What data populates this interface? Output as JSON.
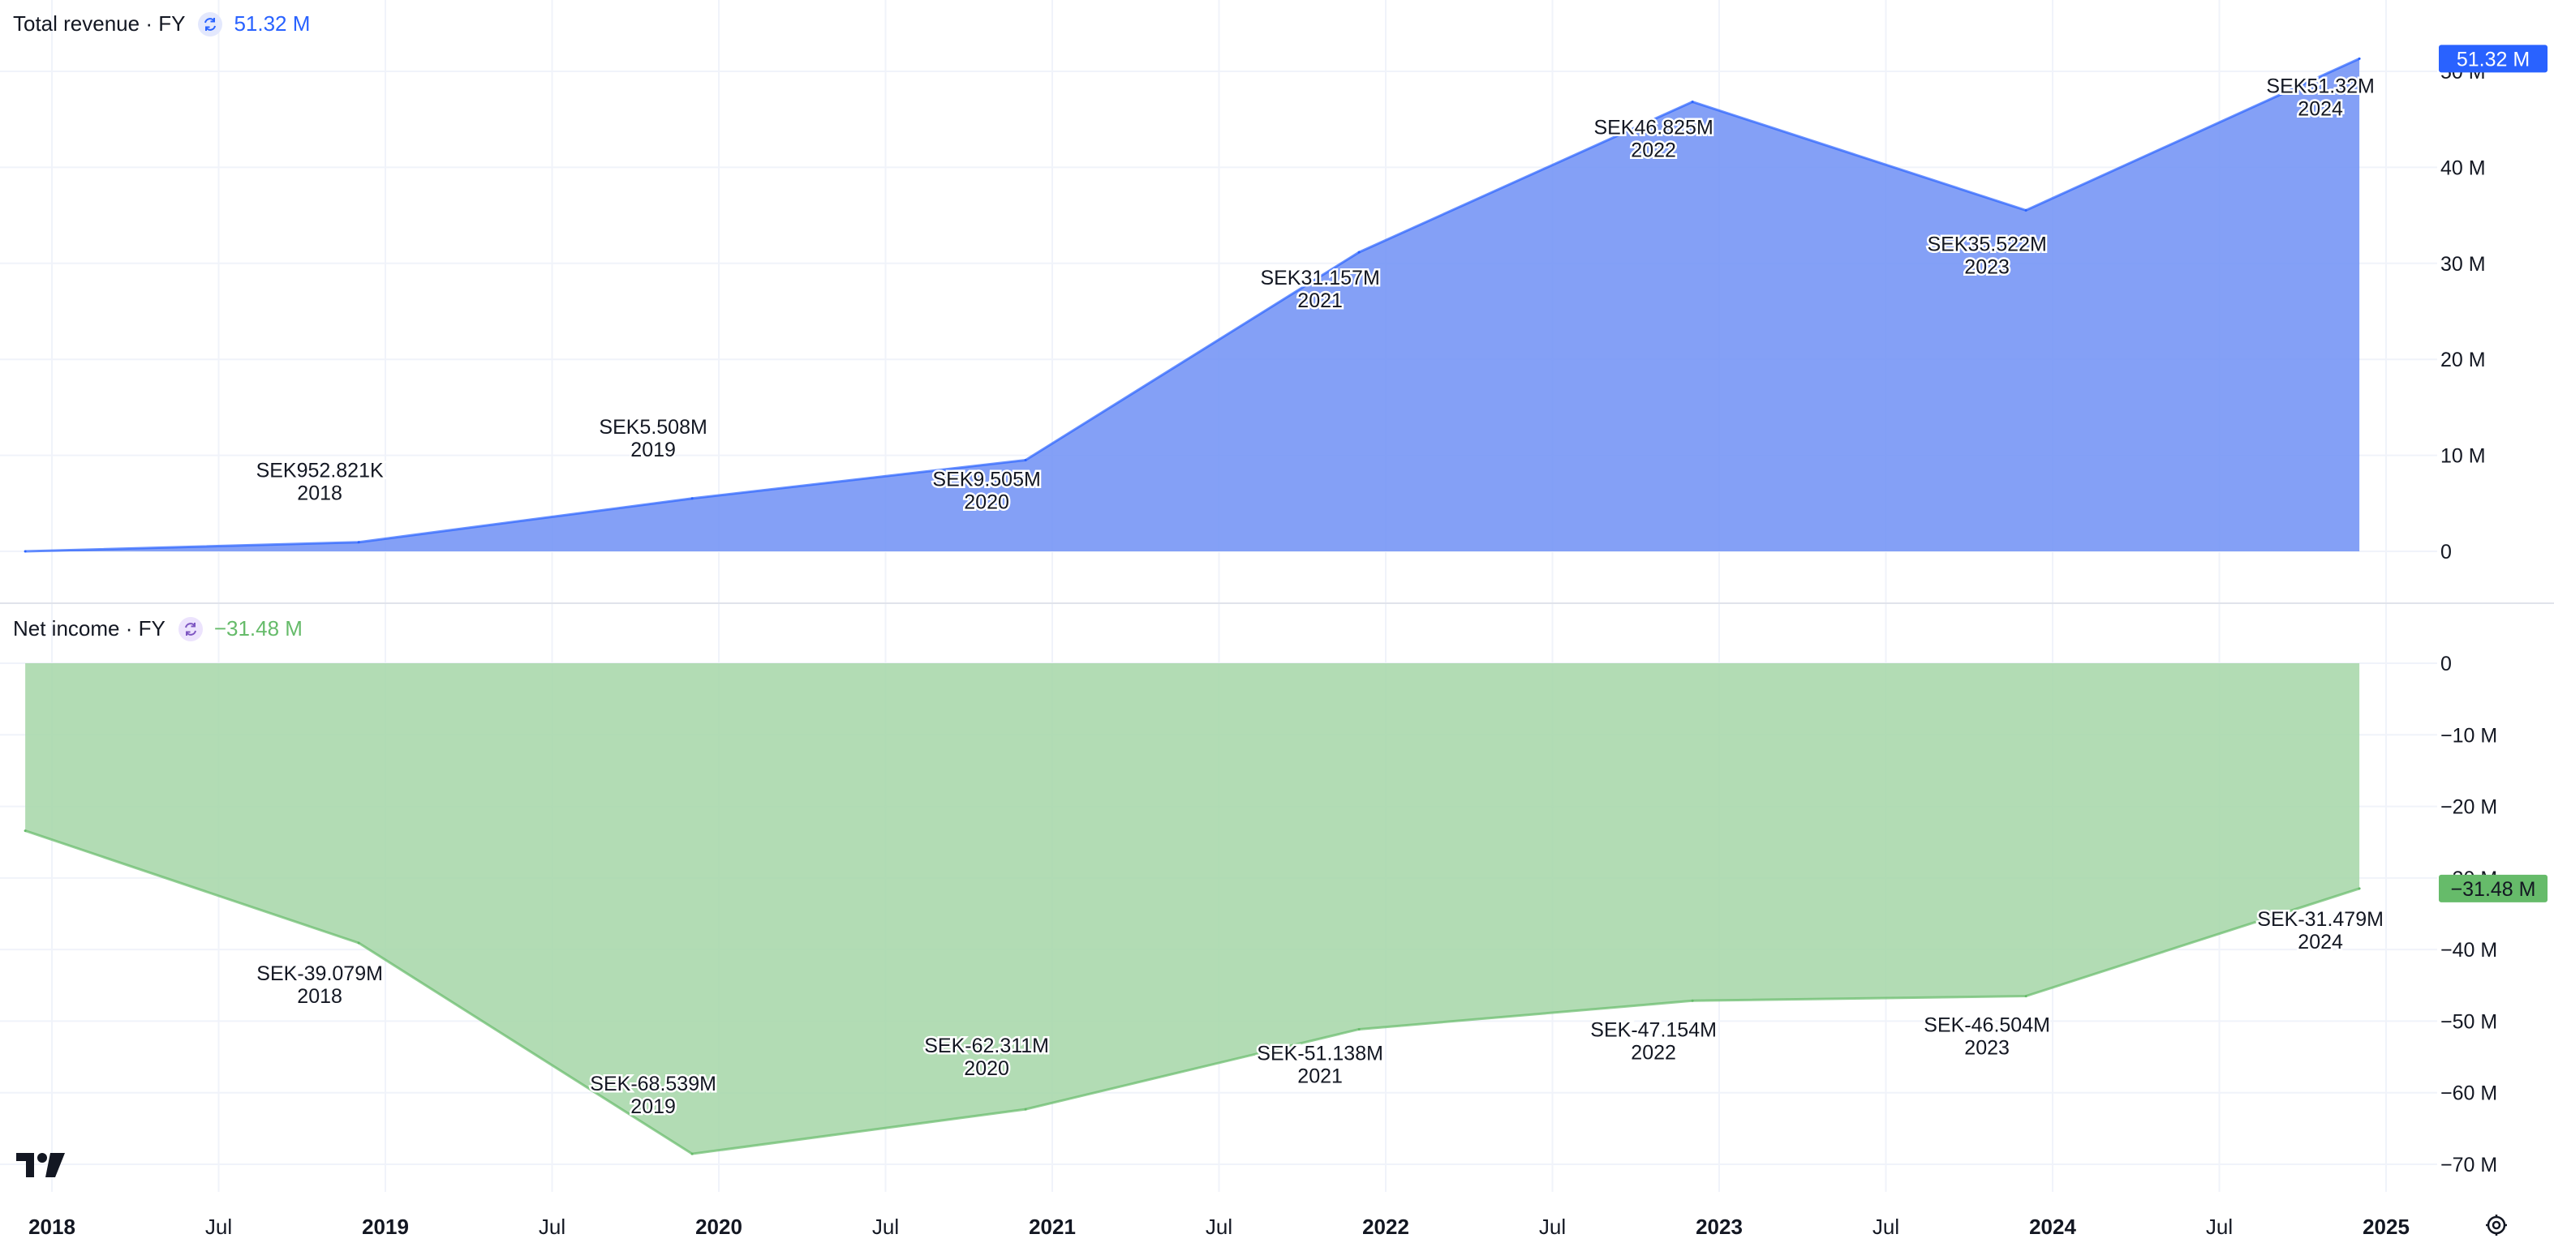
{
  "panes": [
    {
      "title": "Total revenue · FY",
      "current_value": "51.32 M",
      "color": "#2962ff",
      "fill": "#6f8ff5",
      "badge_color": "#2962ff"
    },
    {
      "title": "Net income · FY",
      "current_value": "−31.48 M",
      "color": "#66bb6a",
      "fill": "#a5d6a7",
      "badge_color": "#66bb6a"
    }
  ],
  "x_axis": {
    "ticks": [
      {
        "label": "2018",
        "t": 2018.0,
        "bold": true
      },
      {
        "label": "Jul",
        "t": 2018.5,
        "bold": false
      },
      {
        "label": "2019",
        "t": 2019.0,
        "bold": true
      },
      {
        "label": "Jul",
        "t": 2019.5,
        "bold": false
      },
      {
        "label": "2020",
        "t": 2020.0,
        "bold": true
      },
      {
        "label": "Jul",
        "t": 2020.5,
        "bold": false
      },
      {
        "label": "2021",
        "t": 2021.0,
        "bold": true
      },
      {
        "label": "Jul",
        "t": 2021.5,
        "bold": false
      },
      {
        "label": "2022",
        "t": 2022.0,
        "bold": true
      },
      {
        "label": "Jul",
        "t": 2022.5,
        "bold": false
      },
      {
        "label": "2023",
        "t": 2023.0,
        "bold": true
      },
      {
        "label": "Jul",
        "t": 2023.5,
        "bold": false
      },
      {
        "label": "2024",
        "t": 2024.0,
        "bold": true
      },
      {
        "label": "Jul",
        "t": 2024.5,
        "bold": false
      },
      {
        "label": "2025",
        "t": 2025.0,
        "bold": true
      }
    ]
  },
  "chart_data": [
    {
      "type": "area",
      "title": "Total revenue · FY",
      "xlabel": "",
      "ylabel": "",
      "ylim": [
        0,
        50
      ],
      "y_ticks": [
        {
          "v": 0,
          "label": "0"
        },
        {
          "v": 10,
          "label": "10 M"
        },
        {
          "v": 20,
          "label": "20 M"
        },
        {
          "v": 30,
          "label": "30 M"
        },
        {
          "v": 40,
          "label": "40 M"
        },
        {
          "v": 50,
          "label": "50 M"
        }
      ],
      "grid": true,
      "series": [
        {
          "points": [
            {
              "t": 2017.92,
              "y": 0.0
            },
            {
              "t": 2018.92,
              "y": 0.952821,
              "label": "SEK952.821K",
              "year": "2018"
            },
            {
              "t": 2019.92,
              "y": 5.508,
              "label": "SEK5.508M",
              "year": "2019"
            },
            {
              "t": 2020.92,
              "y": 9.505,
              "label": "SEK9.505M",
              "year": "2020"
            },
            {
              "t": 2021.92,
              "y": 31.157,
              "label": "SEK31.157M",
              "year": "2021"
            },
            {
              "t": 2022.92,
              "y": 46.825,
              "label": "SEK46.825M",
              "year": "2022"
            },
            {
              "t": 2023.92,
              "y": 35.522,
              "label": "SEK35.522M",
              "year": "2023"
            },
            {
              "t": 2024.92,
              "y": 51.32,
              "label": "SEK51.32M",
              "year": "2024"
            }
          ]
        }
      ]
    },
    {
      "type": "area",
      "title": "Net income · FY",
      "xlabel": "",
      "ylabel": "",
      "ylim": [
        -70,
        0
      ],
      "y_ticks": [
        {
          "v": 0,
          "label": "0"
        },
        {
          "v": -10,
          "label": "−10 M"
        },
        {
          "v": -20,
          "label": "−20 M"
        },
        {
          "v": -30,
          "label": "−30 M"
        },
        {
          "v": -40,
          "label": "−40 M"
        },
        {
          "v": -50,
          "label": "−50 M"
        },
        {
          "v": -60,
          "label": "−60 M"
        },
        {
          "v": -70,
          "label": "−70 M"
        }
      ],
      "grid": true,
      "series": [
        {
          "points": [
            {
              "t": 2017.92,
              "y": -23.4
            },
            {
              "t": 2018.92,
              "y": -39.079,
              "label": "SEK-39.079M",
              "year": "2018"
            },
            {
              "t": 2019.92,
              "y": -68.539,
              "label": "SEK-68.539M",
              "year": "2019"
            },
            {
              "t": 2020.92,
              "y": -62.311,
              "label": "SEK-62.311M",
              "year": "2020"
            },
            {
              "t": 2021.92,
              "y": -51.138,
              "label": "SEK-51.138M",
              "year": "2021"
            },
            {
              "t": 2022.92,
              "y": -47.154,
              "label": "SEK-47.154M",
              "year": "2022"
            },
            {
              "t": 2023.92,
              "y": -46.504,
              "label": "SEK-46.504M",
              "year": "2023"
            },
            {
              "t": 2024.92,
              "y": -31.479,
              "label": "SEK-31.479M",
              "year": "2024"
            }
          ]
        }
      ]
    }
  ]
}
